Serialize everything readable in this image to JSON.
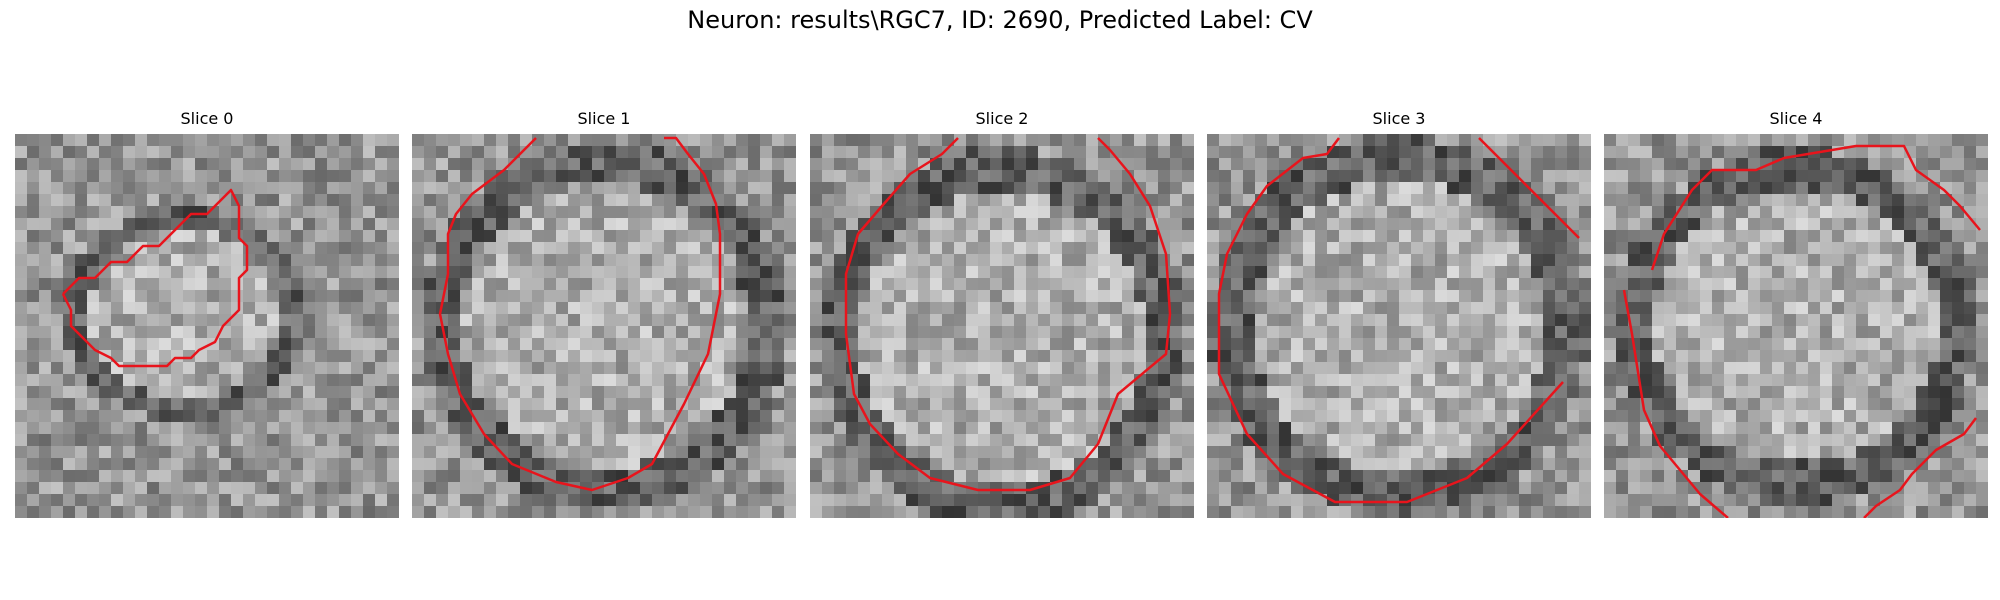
{
  "figure": {
    "title": "Neuron: results\\RGC7, ID: 2690, Predicted Label: CV"
  },
  "panels": [
    {
      "title": "Slice 0"
    },
    {
      "title": "Slice 1"
    },
    {
      "title": "Slice 2"
    },
    {
      "title": "Slice 3"
    },
    {
      "title": "Slice 4"
    }
  ],
  "colors": {
    "contour": "#e8141c",
    "image_colormap": "grayscale"
  }
}
